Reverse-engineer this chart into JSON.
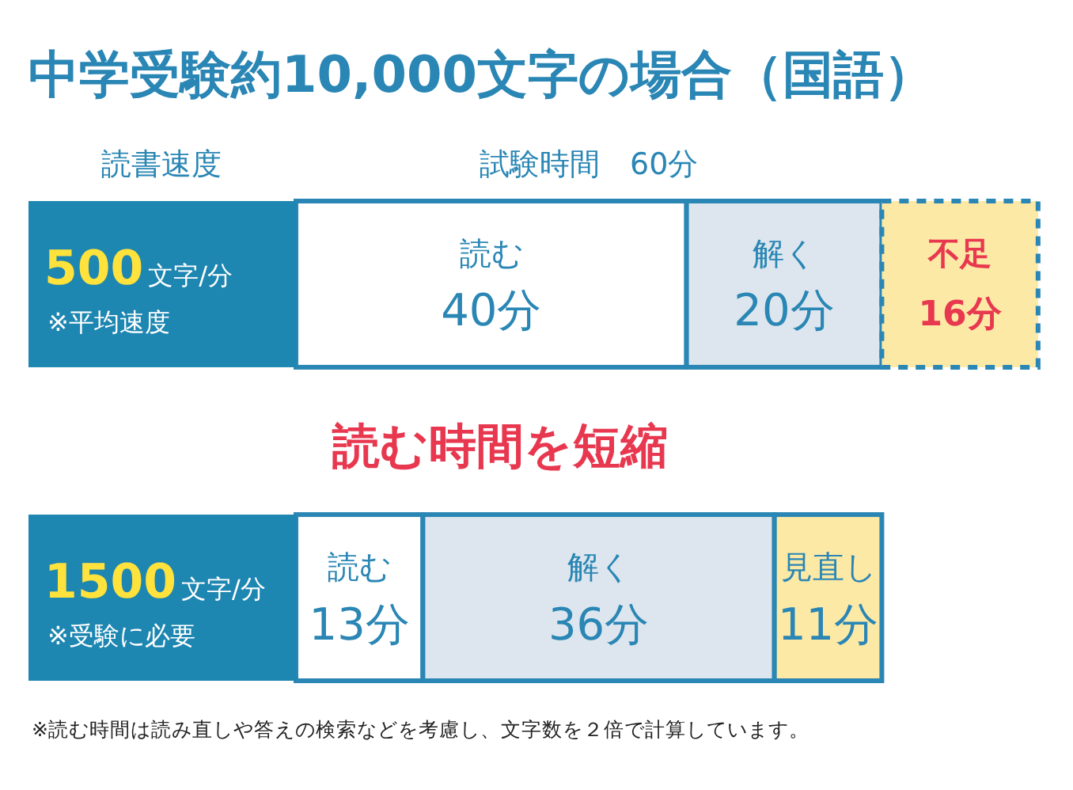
{
  "chart_data": {
    "type": "bar",
    "orientation": "horizontal",
    "stacked": true,
    "title": "中学受験約10,000文字の場合（国語）",
    "ylabel": "読書速度",
    "xlabel": "試験時間　60分",
    "categories": [
      "500文字/分",
      "1500文字/分"
    ],
    "series": [
      {
        "name": "読む",
        "color": "#ffffff",
        "values": [
          40,
          13
        ],
        "value_labels": [
          "40分",
          "13分"
        ]
      },
      {
        "name": "解く",
        "color": "#dde6ee",
        "values": [
          20,
          36
        ],
        "value_labels": [
          "20分",
          "36分"
        ]
      },
      {
        "name": "不足",
        "color": "#fde9a6",
        "values": [
          16,
          null
        ],
        "value_labels": [
          "16分",
          null
        ],
        "line_style": "dashed"
      },
      {
        "name": "見直し",
        "color": "#fde9a6",
        "values": [
          null,
          11
        ],
        "value_labels": [
          null,
          "11分"
        ]
      }
    ],
    "annotations": [
      "※平均速度",
      "※受験に必要",
      "読む時間を短縮",
      "※読む時間は読み直しや答えの検索などを考慮し、文字数を２倍で計算しています。"
    ]
  }
}
